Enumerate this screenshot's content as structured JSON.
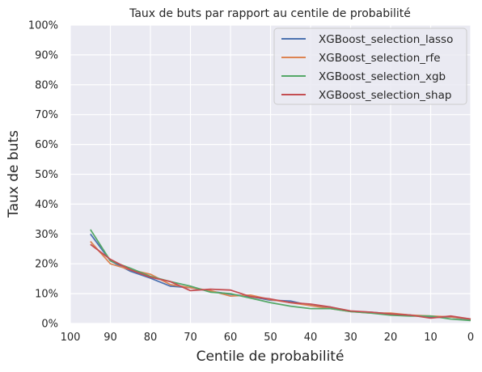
{
  "chart_data": {
    "type": "line",
    "title": "Taux de buts par rapport au centile de probabilité",
    "xlabel": "Centile de probabilité",
    "ylabel": "Taux de buts",
    "xlim": [
      100,
      0
    ],
    "ylim": [
      0,
      100
    ],
    "x_reversed": true,
    "x_ticks": [
      100,
      90,
      80,
      70,
      60,
      50,
      40,
      30,
      20,
      10,
      0
    ],
    "y_ticks": [
      0,
      10,
      20,
      30,
      40,
      50,
      60,
      70,
      80,
      90,
      100
    ],
    "y_tick_labels": [
      "0%",
      "10%",
      "20%",
      "30%",
      "40%",
      "50%",
      "60%",
      "70%",
      "80%",
      "90%",
      "100%"
    ],
    "grid": true,
    "legend_position": "top-right",
    "x": [
      95,
      90,
      85,
      80,
      75,
      70,
      65,
      60,
      55,
      50,
      45,
      40,
      35,
      30,
      25,
      20,
      15,
      10,
      5,
      0
    ],
    "series": [
      {
        "name": "XGBoost_selection_lasso",
        "color": "#4c72b0",
        "values": [
          30.0,
          21.0,
          17.5,
          15.2,
          12.5,
          12.0,
          10.8,
          9.8,
          9.0,
          7.8,
          7.5,
          6.0,
          5.5,
          4.0,
          3.8,
          3.2,
          2.8,
          2.0,
          2.2,
          1.3
        ]
      },
      {
        "name": "XGBoost_selection_rfe",
        "color": "#dd8452",
        "values": [
          27.5,
          20.0,
          18.0,
          16.5,
          13.0,
          12.0,
          11.0,
          9.2,
          9.5,
          8.0,
          7.0,
          6.0,
          5.0,
          4.0,
          3.5,
          3.5,
          2.8,
          2.5,
          2.2,
          1.5
        ]
      },
      {
        "name": "XGBoost_selection_xgb",
        "color": "#55a868",
        "values": [
          31.5,
          21.0,
          18.5,
          15.8,
          14.0,
          12.5,
          10.5,
          10.0,
          8.5,
          7.0,
          5.8,
          5.0,
          5.0,
          4.0,
          3.5,
          2.8,
          2.5,
          2.5,
          1.5,
          1.0
        ]
      },
      {
        "name": "XGBoost_selection_shap",
        "color": "#c44e52",
        "values": [
          26.5,
          21.5,
          18.0,
          15.5,
          14.0,
          11.0,
          11.5,
          11.2,
          9.0,
          8.2,
          7.0,
          6.5,
          5.5,
          4.2,
          3.8,
          3.2,
          2.8,
          1.8,
          2.5,
          1.5
        ]
      }
    ]
  },
  "colors": {
    "plot_background": "#eaeaf2",
    "grid": "#ffffff",
    "text": "#262626"
  }
}
